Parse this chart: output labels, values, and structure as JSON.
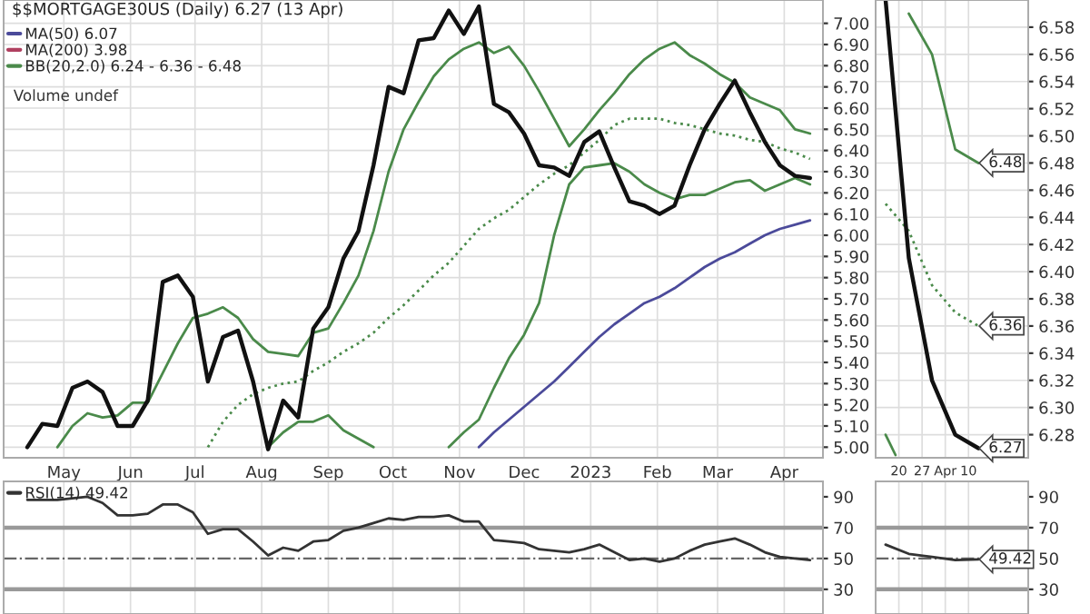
{
  "chart_data": [
    {
      "type": "line",
      "title": "$$MORTGAGE30US (Daily) 6.27 (13 Apr)",
      "x": [
        "2022-04-14",
        "2022-04-21",
        "2022-04-28",
        "2022-05-05",
        "2022-05-12",
        "2022-05-19",
        "2022-05-26",
        "2022-06-02",
        "2022-06-09",
        "2022-06-16",
        "2022-06-23",
        "2022-06-30",
        "2022-07-07",
        "2022-07-14",
        "2022-07-21",
        "2022-07-28",
        "2022-08-04",
        "2022-08-11",
        "2022-08-18",
        "2022-08-25",
        "2022-09-01",
        "2022-09-08",
        "2022-09-15",
        "2022-09-22",
        "2022-09-29",
        "2022-10-06",
        "2022-10-13",
        "2022-10-20",
        "2022-10-27",
        "2022-11-03",
        "2022-11-10",
        "2022-11-17",
        "2022-11-24",
        "2022-12-01",
        "2022-12-08",
        "2022-12-15",
        "2022-12-22",
        "2022-12-29",
        "2023-01-05",
        "2023-01-12",
        "2023-01-19",
        "2023-01-26",
        "2023-02-02",
        "2023-02-09",
        "2023-02-16",
        "2023-02-23",
        "2023-03-02",
        "2023-03-09",
        "2023-03-16",
        "2023-03-23",
        "2023-03-30",
        "2023-04-06",
        "2023-04-13"
      ],
      "series": [
        {
          "name": "MA(50) 6.07",
          "color": "#4b4a9a",
          "line_style": "solid",
          "values": [
            null,
            null,
            null,
            null,
            null,
            null,
            null,
            null,
            null,
            null,
            null,
            null,
            null,
            null,
            null,
            null,
            null,
            null,
            null,
            null,
            null,
            null,
            null,
            null,
            null,
            null,
            null,
            null,
            null,
            null,
            5.0,
            5.07,
            5.13,
            5.19,
            5.25,
            5.31,
            5.38,
            5.45,
            5.52,
            5.58,
            5.63,
            5.68,
            5.71,
            5.75,
            5.8,
            5.85,
            5.89,
            5.92,
            5.96,
            6.0,
            6.03,
            6.05,
            6.07
          ]
        },
        {
          "name": "MA(200) 3.98",
          "color": "#b04060",
          "line_style": "solid",
          "values": [
            null,
            null,
            null,
            null,
            null,
            null,
            null,
            null,
            null,
            null,
            null,
            null,
            null,
            null,
            null,
            null,
            null,
            null,
            null,
            null,
            null,
            null,
            null,
            null,
            null,
            null,
            null,
            null,
            null,
            null,
            null,
            null,
            null,
            null,
            null,
            null,
            null,
            null,
            null,
            null,
            null,
            null,
            null,
            null,
            null,
            null,
            null,
            null,
            null,
            null,
            null,
            null,
            null
          ]
        },
        {
          "name": "BB(20,2.0) 6.24 - 6.36 - 6.48",
          "color": "#4a8a4a",
          "line_style": "solid",
          "values": [
            null,
            null,
            5.0,
            5.1,
            5.16,
            5.14,
            5.15,
            5.21,
            5.21,
            5.35,
            5.49,
            5.61,
            5.63,
            5.66,
            5.61,
            5.51,
            5.45,
            5.44,
            5.43,
            5.54,
            5.56,
            5.68,
            5.81,
            6.02,
            6.3,
            6.5,
            6.63,
            6.75,
            6.83,
            6.88,
            6.91,
            6.86,
            6.89,
            6.8,
            6.68,
            6.55,
            6.42,
            6.5,
            6.59,
            6.67,
            6.76,
            6.83,
            6.88,
            6.91,
            6.85,
            6.81,
            6.76,
            6.72,
            6.65,
            6.62,
            6.59,
            6.5,
            6.48
          ]
        },
        {
          "color": "#4a8a4a",
          "line_style": "solid",
          "values": [
            null,
            null,
            null,
            null,
            null,
            null,
            null,
            null,
            null,
            null,
            null,
            null,
            null,
            null,
            null,
            null,
            5.0,
            5.07,
            5.12,
            5.12,
            5.15,
            5.08,
            5.04,
            5.0,
            null,
            null,
            null,
            null,
            5.0,
            5.07,
            5.13,
            5.28,
            5.42,
            5.53,
            5.68,
            6.0,
            6.24,
            6.32,
            6.33,
            6.34,
            6.3,
            6.24,
            6.2,
            6.17,
            6.19,
            6.19,
            6.22,
            6.25,
            6.26,
            6.21,
            6.24,
            6.27,
            6.24
          ]
        },
        {
          "color": "#4a8a4a",
          "line_style": "dotted",
          "values": [
            null,
            null,
            null,
            null,
            null,
            null,
            null,
            null,
            null,
            null,
            null,
            null,
            5.0,
            5.12,
            5.2,
            5.25,
            5.28,
            5.3,
            5.31,
            5.36,
            5.4,
            5.45,
            5.49,
            5.54,
            5.61,
            5.67,
            5.74,
            5.81,
            5.87,
            5.95,
            6.03,
            6.08,
            6.12,
            6.18,
            6.24,
            6.29,
            6.33,
            6.39,
            6.45,
            6.52,
            6.55,
            6.55,
            6.55,
            6.53,
            6.52,
            6.5,
            6.48,
            6.47,
            6.45,
            6.44,
            6.41,
            6.39,
            6.36
          ]
        },
        {
          "color": "#111111",
          "line_style": "solid",
          "values": [
            5.0,
            5.11,
            5.1,
            5.28,
            5.31,
            5.26,
            5.1,
            5.1,
            5.22,
            5.78,
            5.81,
            5.71,
            5.31,
            5.52,
            5.55,
            5.31,
            4.99,
            5.22,
            5.14,
            5.56,
            5.66,
            5.89,
            6.02,
            6.33,
            6.7,
            6.67,
            6.92,
            6.93,
            7.06,
            6.95,
            7.08,
            6.62,
            6.58,
            6.48,
            6.33,
            6.32,
            6.28,
            6.44,
            6.49,
            6.32,
            6.16,
            6.14,
            6.1,
            6.14,
            6.33,
            6.5,
            6.62,
            6.73,
            6.58,
            6.44,
            6.33,
            6.28,
            6.27
          ]
        }
      ],
      "annotations": [
        "Volume undef"
      ],
      "xlim": [
        "2022-04-03",
        "2023-04-19"
      ],
      "ylim": [
        4.95,
        7.11
      ],
      "xticks": [
        {
          "value": "2022-05-01",
          "label": "May"
        },
        {
          "value": "2022-06-01",
          "label": "Jun"
        },
        {
          "value": "2022-07-01",
          "label": "Jul"
        },
        {
          "value": "2022-08-01",
          "label": "Aug"
        },
        {
          "value": "2022-09-01",
          "label": "Sep"
        },
        {
          "value": "2022-10-01",
          "label": "Oct"
        },
        {
          "value": "2022-11-01",
          "label": "Nov"
        },
        {
          "value": "2022-12-01",
          "label": "Dec"
        },
        {
          "value": "2023-01-01",
          "label": "2023"
        },
        {
          "value": "2023-02-01",
          "label": "Feb"
        },
        {
          "value": "2023-03-01",
          "label": "Mar"
        },
        {
          "value": "2023-04-01",
          "label": "Apr"
        }
      ],
      "yticks": [
        {
          "value": 5.0,
          "label": "5.00"
        },
        {
          "value": 5.1,
          "label": "5.10"
        },
        {
          "value": 5.2,
          "label": "5.20"
        },
        {
          "value": 5.3,
          "label": "5.30"
        },
        {
          "value": 5.4,
          "label": "5.40"
        },
        {
          "value": 5.5,
          "label": "5.50"
        },
        {
          "value": 5.6,
          "label": "5.60"
        },
        {
          "value": 5.7,
          "label": "5.70"
        },
        {
          "value": 5.8,
          "label": "5.80"
        },
        {
          "value": 5.9,
          "label": "5.90"
        },
        {
          "value": 6.0,
          "label": "6.00"
        },
        {
          "value": 6.1,
          "label": "6.10"
        },
        {
          "value": 6.2,
          "label": "6.20"
        },
        {
          "value": 6.3,
          "label": "6.30"
        },
        {
          "value": 6.4,
          "label": "6.40"
        },
        {
          "value": 6.5,
          "label": "6.50"
        },
        {
          "value": 6.6,
          "label": "6.60"
        },
        {
          "value": 6.7,
          "label": "6.70"
        },
        {
          "value": 6.8,
          "label": "6.80"
        },
        {
          "value": 6.9,
          "label": "6.90"
        },
        {
          "value": 7.0,
          "label": "7.00"
        }
      ],
      "grid": true,
      "legend": "top left"
    },
    {
      "type": "line",
      "x": [
        "2023-03-16",
        "2023-03-23",
        "2023-03-30",
        "2023-04-06",
        "2023-04-13"
      ],
      "series": [
        {
          "color": "#4a8a4a",
          "line_style": "solid",
          "values": [
            null,
            6.59,
            6.56,
            6.49,
            6.48
          ],
          "value_labels": [
            null,
            null,
            null,
            null,
            "6.48"
          ]
        },
        {
          "color": "#4a8a4a",
          "line_style": "solid",
          "x": [
            "2023-03-16",
            "2023-03-19"
          ],
          "values": [
            6.28,
            6.265
          ]
        },
        {
          "color": "#4a8a4a",
          "line_style": "dotted",
          "values": [
            6.45,
            6.43,
            6.39,
            6.37,
            6.36
          ],
          "value_labels": [
            null,
            null,
            null,
            null,
            "6.36"
          ]
        },
        {
          "color": "#111111",
          "line_style": "solid",
          "values": [
            6.6,
            6.41,
            6.32,
            6.28,
            6.27
          ],
          "value_labels": [
            null,
            null,
            null,
            null,
            "6.27"
          ]
        }
      ],
      "xlim": [
        "2023-03-13",
        "2023-04-28"
      ],
      "ylim": [
        6.263,
        6.6
      ],
      "xticks": [
        {
          "value": "2023-03-20",
          "label": "20"
        },
        {
          "value": "2023-03-27",
          "label": "27"
        },
        {
          "value": "2023-04-03",
          "label": "Apr"
        },
        {
          "value": "2023-04-10",
          "label": "10"
        }
      ],
      "yticks": [
        {
          "value": 6.28,
          "label": "6.28"
        },
        {
          "value": 6.3,
          "label": "6.30"
        },
        {
          "value": 6.32,
          "label": "6.32"
        },
        {
          "value": 6.34,
          "label": "6.34"
        },
        {
          "value": 6.36,
          "label": "6.36"
        },
        {
          "value": 6.38,
          "label": "6.38"
        },
        {
          "value": 6.4,
          "label": "6.40"
        },
        {
          "value": 6.42,
          "label": "6.42"
        },
        {
          "value": 6.44,
          "label": "6.44"
        },
        {
          "value": 6.46,
          "label": "6.46"
        },
        {
          "value": 6.48,
          "label": "6.48"
        },
        {
          "value": 6.5,
          "label": "6.50"
        },
        {
          "value": 6.52,
          "label": "6.52"
        },
        {
          "value": 6.54,
          "label": "6.54"
        },
        {
          "value": 6.56,
          "label": "6.56"
        },
        {
          "value": 6.58,
          "label": "6.58"
        }
      ],
      "grid": true
    },
    {
      "type": "line",
      "x": [
        "2022-04-14",
        "2022-04-21",
        "2022-04-28",
        "2022-05-05",
        "2022-05-12",
        "2022-05-19",
        "2022-05-26",
        "2022-06-02",
        "2022-06-09",
        "2022-06-16",
        "2022-06-23",
        "2022-06-30",
        "2022-07-07",
        "2022-07-14",
        "2022-07-21",
        "2022-07-28",
        "2022-08-04",
        "2022-08-11",
        "2022-08-18",
        "2022-08-25",
        "2022-09-01",
        "2022-09-08",
        "2022-09-15",
        "2022-09-22",
        "2022-09-29",
        "2022-10-06",
        "2022-10-13",
        "2022-10-20",
        "2022-10-27",
        "2022-11-03",
        "2022-11-10",
        "2022-11-17",
        "2022-11-24",
        "2022-12-01",
        "2022-12-08",
        "2022-12-15",
        "2022-12-22",
        "2022-12-29",
        "2023-01-05",
        "2023-01-12",
        "2023-01-19",
        "2023-01-26",
        "2023-02-02",
        "2023-02-09",
        "2023-02-16",
        "2023-02-23",
        "2023-03-02",
        "2023-03-09",
        "2023-03-16",
        "2023-03-23",
        "2023-03-30",
        "2023-04-06",
        "2023-04-13"
      ],
      "series": [
        {
          "name": "RSI(14) 49.42",
          "color": "#333333",
          "line_style": "solid",
          "values": [
            88,
            88,
            88,
            89,
            90,
            86,
            78,
            78,
            79,
            85,
            85,
            80,
            66,
            69,
            69,
            61,
            52,
            57,
            55,
            61,
            62,
            68,
            70,
            73,
            76,
            75,
            77,
            77,
            78,
            74,
            74,
            62,
            61,
            60,
            56,
            55,
            54,
            56,
            59,
            54,
            49,
            50,
            48,
            50,
            55,
            59,
            61,
            63,
            59,
            54,
            51,
            50,
            49
          ]
        }
      ],
      "xlim": [
        "2022-04-03",
        "2023-04-19"
      ],
      "ylim": [
        14,
        100
      ],
      "yticks": [
        30,
        50,
        70,
        90
      ],
      "tick_labels": "y",
      "grid": "x",
      "ref_lines": [
        {
          "axis": "y",
          "value": 70,
          "color": "#999999",
          "line_style": "solid"
        },
        {
          "axis": "y",
          "value": 50,
          "color": "#666666",
          "line_style": "dashdot"
        },
        {
          "axis": "y",
          "value": 30,
          "color": "#999999",
          "line_style": "solid"
        }
      ],
      "legend": "top left"
    },
    {
      "type": "line",
      "x": [
        "2023-03-16",
        "2023-03-23",
        "2023-03-30",
        "2023-04-06",
        "2023-04-13"
      ],
      "series": [
        {
          "color": "#333333",
          "line_style": "solid",
          "values": [
            59,
            53,
            51,
            49,
            49.42
          ],
          "value_labels": [
            null,
            null,
            null,
            null,
            "49.42"
          ]
        }
      ],
      "xlim": [
        "2023-03-13",
        "2023-04-28"
      ],
      "ylim": [
        14,
        100
      ],
      "yticks": [
        30,
        50,
        70,
        90
      ],
      "tick_labels": "y",
      "grid": "x",
      "ref_lines": [
        {
          "axis": "y",
          "value": 70,
          "color": "#999999",
          "line_style": "solid"
        },
        {
          "axis": "y",
          "value": 50,
          "color": "#666666",
          "line_style": "dashdot"
        },
        {
          "axis": "y",
          "value": 30,
          "color": "#999999",
          "line_style": "solid"
        }
      ]
    }
  ]
}
